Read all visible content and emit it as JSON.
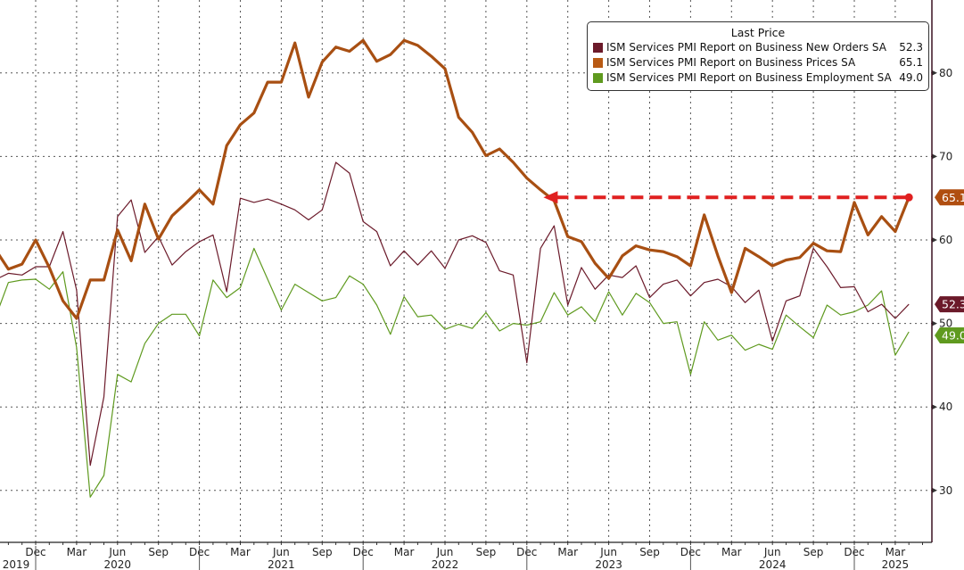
{
  "chart_data": {
    "type": "line",
    "title": "",
    "legend": {
      "title": "Last Price",
      "placement": "top-right"
    },
    "x_start": "2019-09",
    "x_frequency": "monthly",
    "ylim": [
      23.8,
      88.7
    ],
    "y_ticks": [
      30,
      40,
      50,
      60,
      70,
      80
    ],
    "grid": true,
    "y_axis_side": "right",
    "x_tick_labels": [
      {
        "i": 3,
        "label": "Dec"
      },
      {
        "i": 6,
        "label": "Mar"
      },
      {
        "i": 9,
        "label": "Jun"
      },
      {
        "i": 12,
        "label": "Sep"
      },
      {
        "i": 15,
        "label": "Dec"
      },
      {
        "i": 18,
        "label": "Mar"
      },
      {
        "i": 21,
        "label": "Jun"
      },
      {
        "i": 24,
        "label": "Sep"
      },
      {
        "i": 27,
        "label": "Dec"
      },
      {
        "i": 30,
        "label": "Mar"
      },
      {
        "i": 33,
        "label": "Jun"
      },
      {
        "i": 36,
        "label": "Sep"
      },
      {
        "i": 39,
        "label": "Dec"
      },
      {
        "i": 42,
        "label": "Mar"
      },
      {
        "i": 45,
        "label": "Jun"
      },
      {
        "i": 48,
        "label": "Sep"
      },
      {
        "i": 51,
        "label": "Dec"
      },
      {
        "i": 54,
        "label": "Mar"
      },
      {
        "i": 57,
        "label": "Jun"
      },
      {
        "i": 60,
        "label": "Sep"
      },
      {
        "i": 63,
        "label": "Dec"
      },
      {
        "i": 66,
        "label": "Mar"
      }
    ],
    "year_labels": [
      {
        "i": 1,
        "label": "2019"
      },
      {
        "i": 9,
        "label": "2020"
      },
      {
        "i": 21,
        "label": "2021"
      },
      {
        "i": 33,
        "label": "2022"
      },
      {
        "i": 45,
        "label": "2023"
      },
      {
        "i": 57,
        "label": "2024"
      },
      {
        "i": 66,
        "label": "2025"
      }
    ],
    "series": [
      {
        "name": "ISM Services PMI Report on Business New Orders SA",
        "last": "52.3",
        "color": "#6b1a2a",
        "width": 1.2,
        "values": [
          55.2,
          56.0,
          55.8,
          56.8,
          56.8,
          61.0,
          54.0,
          33.0,
          41.2,
          62.8,
          64.8,
          58.5,
          60.4,
          57.0,
          58.6,
          59.8,
          60.6,
          53.8,
          65.0,
          64.5,
          64.9,
          64.3,
          63.6,
          62.4,
          63.6,
          69.3,
          68.0,
          62.2,
          61.0,
          56.9,
          58.7,
          57.0,
          58.7,
          56.6,
          60.0,
          60.5,
          59.7,
          56.3,
          55.8,
          45.3,
          59.0,
          61.7,
          52.2,
          56.7,
          54.1,
          55.8,
          55.5,
          56.9,
          53.1,
          54.7,
          55.2,
          53.3,
          54.9,
          55.3,
          54.4,
          52.5,
          54.0,
          47.9,
          52.7,
          53.3,
          59.0,
          56.8,
          54.3,
          54.4,
          51.4,
          52.3,
          50.6,
          52.3
        ]
      },
      {
        "name": "ISM Services PMI Report on Business Prices SA",
        "last": "65.1",
        "color": "#a84f12",
        "width": 3.2,
        "values": [
          59.0,
          56.5,
          57.1,
          60.0,
          56.7,
          52.7,
          50.6,
          55.2,
          55.2,
          61.2,
          57.5,
          64.3,
          60.1,
          62.9,
          64.4,
          66.0,
          64.3,
          71.3,
          73.8,
          75.2,
          78.9,
          78.9,
          83.6,
          77.1,
          81.3,
          83.1,
          82.6,
          83.9,
          81.4,
          82.2,
          83.9,
          83.3,
          82.0,
          80.5,
          74.7,
          72.9,
          70.1,
          70.9,
          69.3,
          67.4,
          66.0,
          64.7,
          60.4,
          59.8,
          57.2,
          55.4,
          58.1,
          59.3,
          58.8,
          58.6,
          58.0,
          56.9,
          63.0,
          58.1,
          53.7,
          59.0,
          58.0,
          56.9,
          57.6,
          57.9,
          59.6,
          58.7,
          58.6,
          64.5,
          60.6,
          62.8,
          61.0,
          65.1
        ]
      },
      {
        "name": "ISM Services PMI Report on Business Employment SA",
        "last": "49.0",
        "color": "#5f9a1f",
        "width": 1.2,
        "values": [
          50.5,
          54.9,
          55.2,
          55.3,
          54.1,
          56.2,
          47.1,
          29.2,
          31.8,
          43.9,
          43.0,
          47.6,
          50.0,
          51.1,
          51.1,
          48.5,
          55.2,
          53.1,
          54.3,
          59.0,
          55.3,
          51.6,
          54.7,
          53.7,
          52.7,
          53.1,
          55.7,
          54.7,
          52.2,
          48.7,
          53.2,
          50.8,
          51.0,
          49.3,
          49.9,
          49.4,
          51.3,
          49.1,
          50.0,
          49.8,
          50.2,
          53.7,
          51.0,
          52.0,
          50.2,
          53.8,
          51.0,
          53.6,
          52.5,
          50.0,
          50.2,
          43.9,
          50.2,
          48.0,
          48.6,
          46.8,
          47.5,
          46.9,
          51.0,
          49.6,
          48.3,
          52.2,
          51.0,
          51.4,
          52.2,
          53.9,
          46.2,
          49.0
        ]
      }
    ],
    "annotation": {
      "type": "dashed-arrow",
      "value": 65.1,
      "from_i": 41,
      "to_i": 67,
      "color": "#e02020"
    }
  }
}
